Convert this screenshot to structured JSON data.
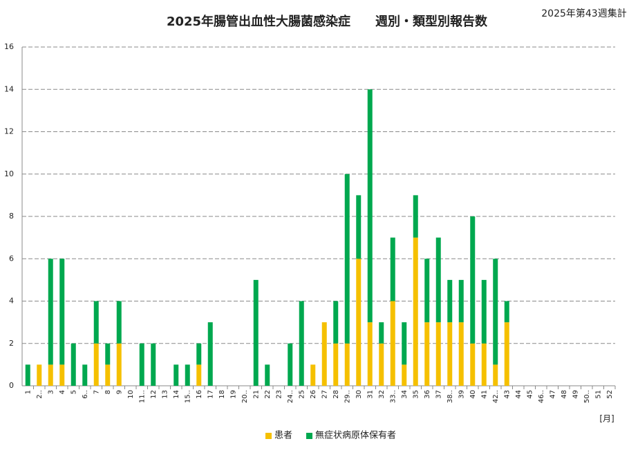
{
  "chart_data": {
    "type": "stacked_bar",
    "title": "2025年腸管出血性大腸菌感染症　　週別・類型別報告数",
    "subtitle": "2025年第43週集計",
    "x_label": "[月]",
    "categories": [
      "1",
      "2..",
      "3",
      "4",
      "5",
      "6..",
      "7",
      "8",
      "9",
      "10",
      "11..",
      "12",
      "13",
      "14",
      "15..",
      "16",
      "17",
      "18",
      "19",
      "20..",
      "21",
      "22",
      "23",
      "24..",
      "25",
      "26",
      "27",
      "28",
      "29..",
      "30",
      "31",
      "32",
      "33..",
      "34",
      "35",
      "36",
      "37",
      "38..",
      "39",
      "40",
      "41",
      "42..",
      "43",
      "44",
      "45",
      "46..",
      "47",
      "48",
      "49",
      "50..",
      "51",
      "52"
    ],
    "series": [
      {
        "name": "患者",
        "color": "#f5c000",
        "values": [
          0,
          1,
          1,
          1,
          0,
          0,
          2,
          1,
          2,
          0,
          0,
          0,
          0,
          0,
          0,
          1,
          0,
          0,
          0,
          0,
          0,
          0,
          0,
          0,
          0,
          1,
          3,
          2,
          2,
          6,
          3,
          2,
          4,
          1,
          7,
          3,
          3,
          3,
          3,
          2,
          2,
          1,
          3,
          0,
          0,
          0,
          0,
          0,
          0,
          0,
          0,
          0
        ]
      },
      {
        "name": "無症状病原体保有者",
        "color": "#00a84f",
        "values": [
          1,
          0,
          5,
          5,
          2,
          1,
          2,
          1,
          2,
          0,
          2,
          2,
          0,
          1,
          1,
          1,
          3,
          0,
          0,
          0,
          5,
          1,
          0,
          2,
          4,
          0,
          0,
          2,
          8,
          3,
          11,
          1,
          3,
          2,
          2,
          3,
          4,
          2,
          2,
          6,
          3,
          5,
          1,
          0,
          0,
          0,
          0,
          0,
          0,
          0,
          0,
          0
        ]
      }
    ],
    "ylim": [
      0,
      16
    ],
    "yticks": [
      0,
      2,
      4,
      6,
      8,
      10,
      12,
      14,
      16
    ],
    "grid": true,
    "legend": "bottom"
  }
}
